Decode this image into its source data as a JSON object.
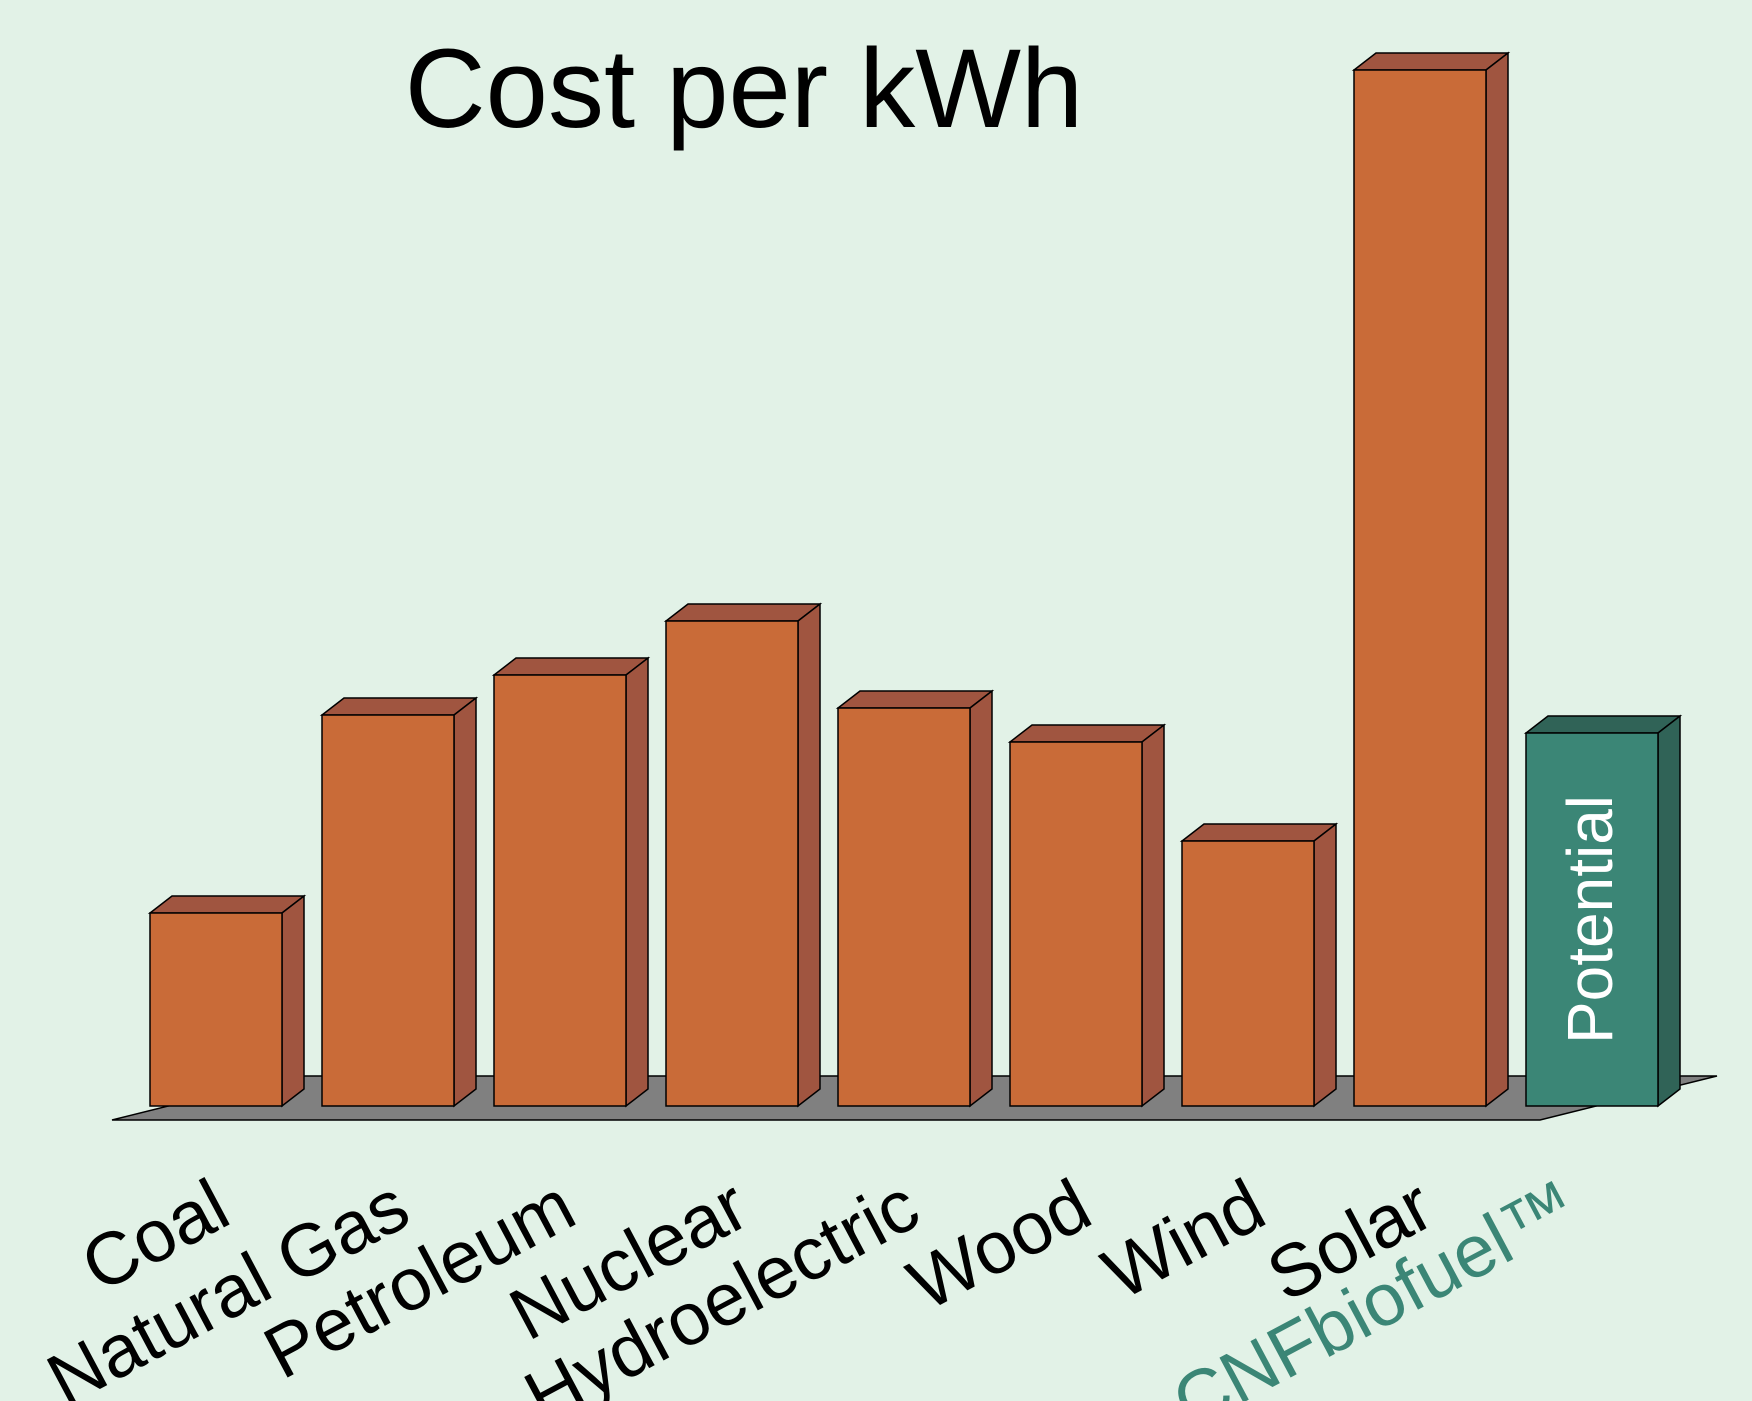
{
  "chart_data": {
    "type": "bar",
    "title": "Cost per kWh",
    "xlabel": "",
    "ylabel": "",
    "grid": false,
    "categories": [
      "Coal",
      "Natural Gas",
      "Petroleum",
      "Nuclear",
      "Hydroelectric",
      "Wood",
      "Wind",
      "Solar",
      "CNFbiofuel™"
    ],
    "values": [
      193,
      391,
      431,
      485,
      398,
      364,
      265,
      1036,
      373
    ],
    "annotations": [
      {
        "category": "CNFbiofuel™",
        "text": "Potential"
      }
    ],
    "colors": {
      "bar_front": "#c96b38",
      "bar_side": "#a05540",
      "highlight_front": "#3b8676",
      "highlight_side": "#306357",
      "highlight_label": "#3b8676",
      "floor": "#808080",
      "background": "#e2f2e7"
    },
    "highlight_category": "CNFbiofuel™"
  }
}
